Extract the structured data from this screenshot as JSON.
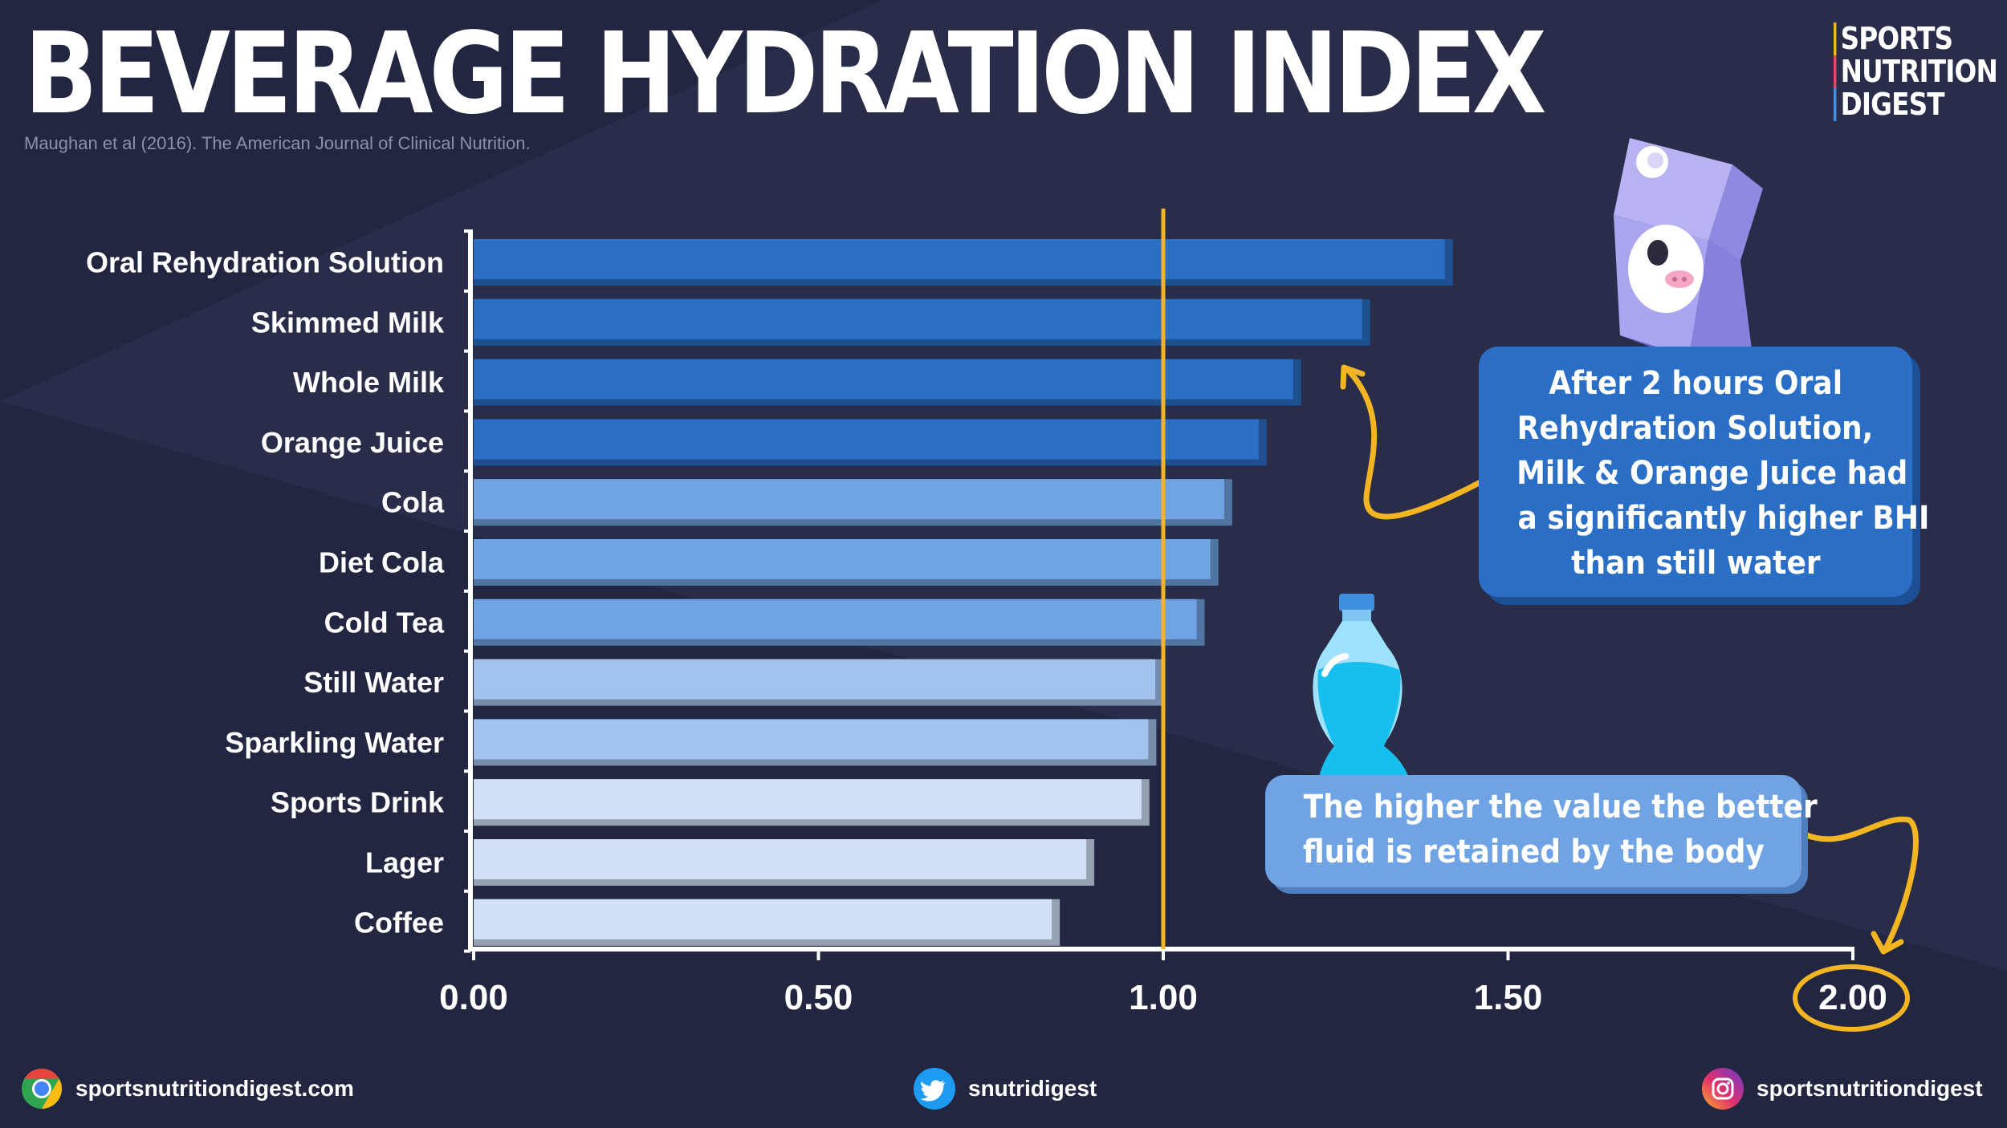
{
  "header": {
    "title": "BEVERAGE HYDRATION INDEX",
    "citation": "Maughan et al (2016). The American Journal of Clinical Nutrition."
  },
  "brand": {
    "lines": [
      "SPORTS",
      "NUTRITION",
      "DIGEST"
    ]
  },
  "chart_data": {
    "type": "bar",
    "orientation": "horizontal",
    "title": "BEVERAGE HYDRATION INDEX",
    "categories": [
      "Oral Rehydration Solution",
      "Skimmed Milk",
      "Whole Milk",
      "Orange Juice",
      "Cola",
      "Diet Cola",
      "Cold Tea",
      "Still Water",
      "Sparkling Water",
      "Sports Drink",
      "Lager",
      "Coffee"
    ],
    "values": [
      1.42,
      1.3,
      1.2,
      1.15,
      1.1,
      1.08,
      1.06,
      1.0,
      0.99,
      0.98,
      0.9,
      0.85
    ],
    "xlim": [
      0,
      2.0
    ],
    "xticks": [
      "0.00",
      "0.50",
      "1.00",
      "1.50",
      "2.00"
    ],
    "reference_line": 1.0,
    "highlighted_tick": "2.00",
    "grid": false,
    "colors": [
      "#2a6ec6",
      "#2a6ec6",
      "#2a6ec6",
      "#2a6ec6",
      "#6fa3e3",
      "#6fa3e3",
      "#6fa3e3",
      "#a2c3ee",
      "#a2c3ee",
      "#cfe0f7",
      "#cfe0f7",
      "#cfe0f7"
    ],
    "reference_color": "#f4b522"
  },
  "callouts": {
    "significant_lines": [
      "After 2 hours Oral",
      "Rehydration Solution,",
      "Milk & Orange Juice had",
      "a significantly higher BHI",
      "than still water"
    ],
    "higher_value_lines": [
      "The higher the value the better",
      "fluid is retained by the body"
    ]
  },
  "footer": {
    "website": "sportsnutritiondigest.com",
    "twitter": "snutridigest",
    "instagram": "sportsnutritiondigest"
  },
  "icons": {
    "website": "chrome-icon",
    "twitter": "twitter-icon",
    "instagram": "instagram-icon",
    "milk": "milk-carton-icon",
    "water": "water-bottle-icon"
  }
}
